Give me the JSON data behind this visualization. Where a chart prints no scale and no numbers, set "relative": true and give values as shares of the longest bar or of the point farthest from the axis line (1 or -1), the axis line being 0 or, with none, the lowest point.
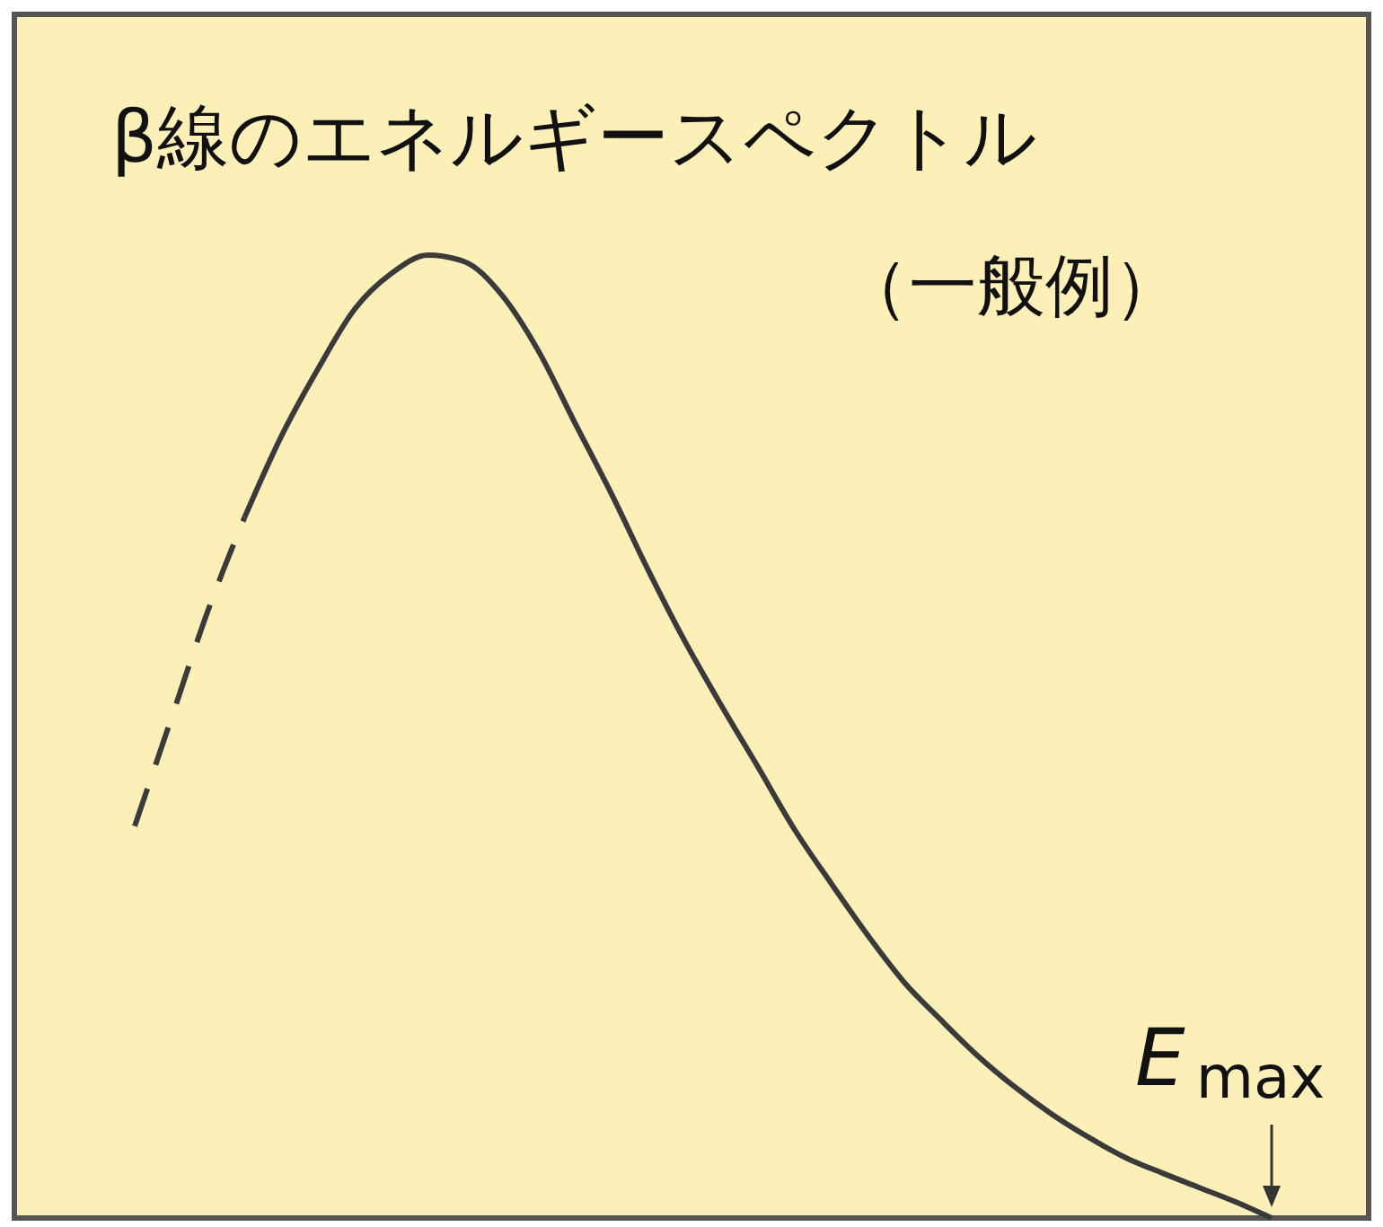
{
  "chart_data": {
    "type": "line",
    "title": "β線のエネルギースペクトル",
    "subtitle": "（一般例）",
    "annotations": [
      "E$_{max}$"
    ],
    "relative": true,
    "categories": [
      null,
      null,
      null,
      null,
      null,
      null,
      null,
      null,
      null,
      null,
      null,
      null,
      null,
      null,
      null,
      null,
      null,
      null,
      null,
      null,
      null,
      null,
      null,
      null,
      null,
      null,
      null,
      null,
      null,
      null,
      null,
      null
    ],
    "series": [
      {
        "color": "#3a3a3a",
        "line_style": "dashed",
        "values": [
          0.407,
          0.519,
          0.631,
          0.728,
          null,
          null,
          null,
          null,
          null,
          null,
          null,
          null,
          null,
          null,
          null,
          null,
          null,
          null,
          null,
          null,
          null,
          null,
          null,
          null,
          null,
          null,
          null,
          null,
          null,
          null,
          null,
          null
        ]
      },
      {
        "color": "#3a3a3a",
        "line_style": "solid",
        "values": [
          null,
          null,
          null,
          0.728,
          0.812,
          0.882,
          0.944,
          0.981,
          1,
          0.993,
          0.959,
          0.901,
          0.826,
          0.752,
          0.673,
          0.599,
          0.532,
          0.468,
          0.403,
          0.347,
          0.293,
          0.244,
          0.205,
          0.168,
          0.136,
          0.108,
          0.084,
          0.063,
          0.047,
          0.032,
          0.017,
          0
        ]
      }
    ]
  }
}
